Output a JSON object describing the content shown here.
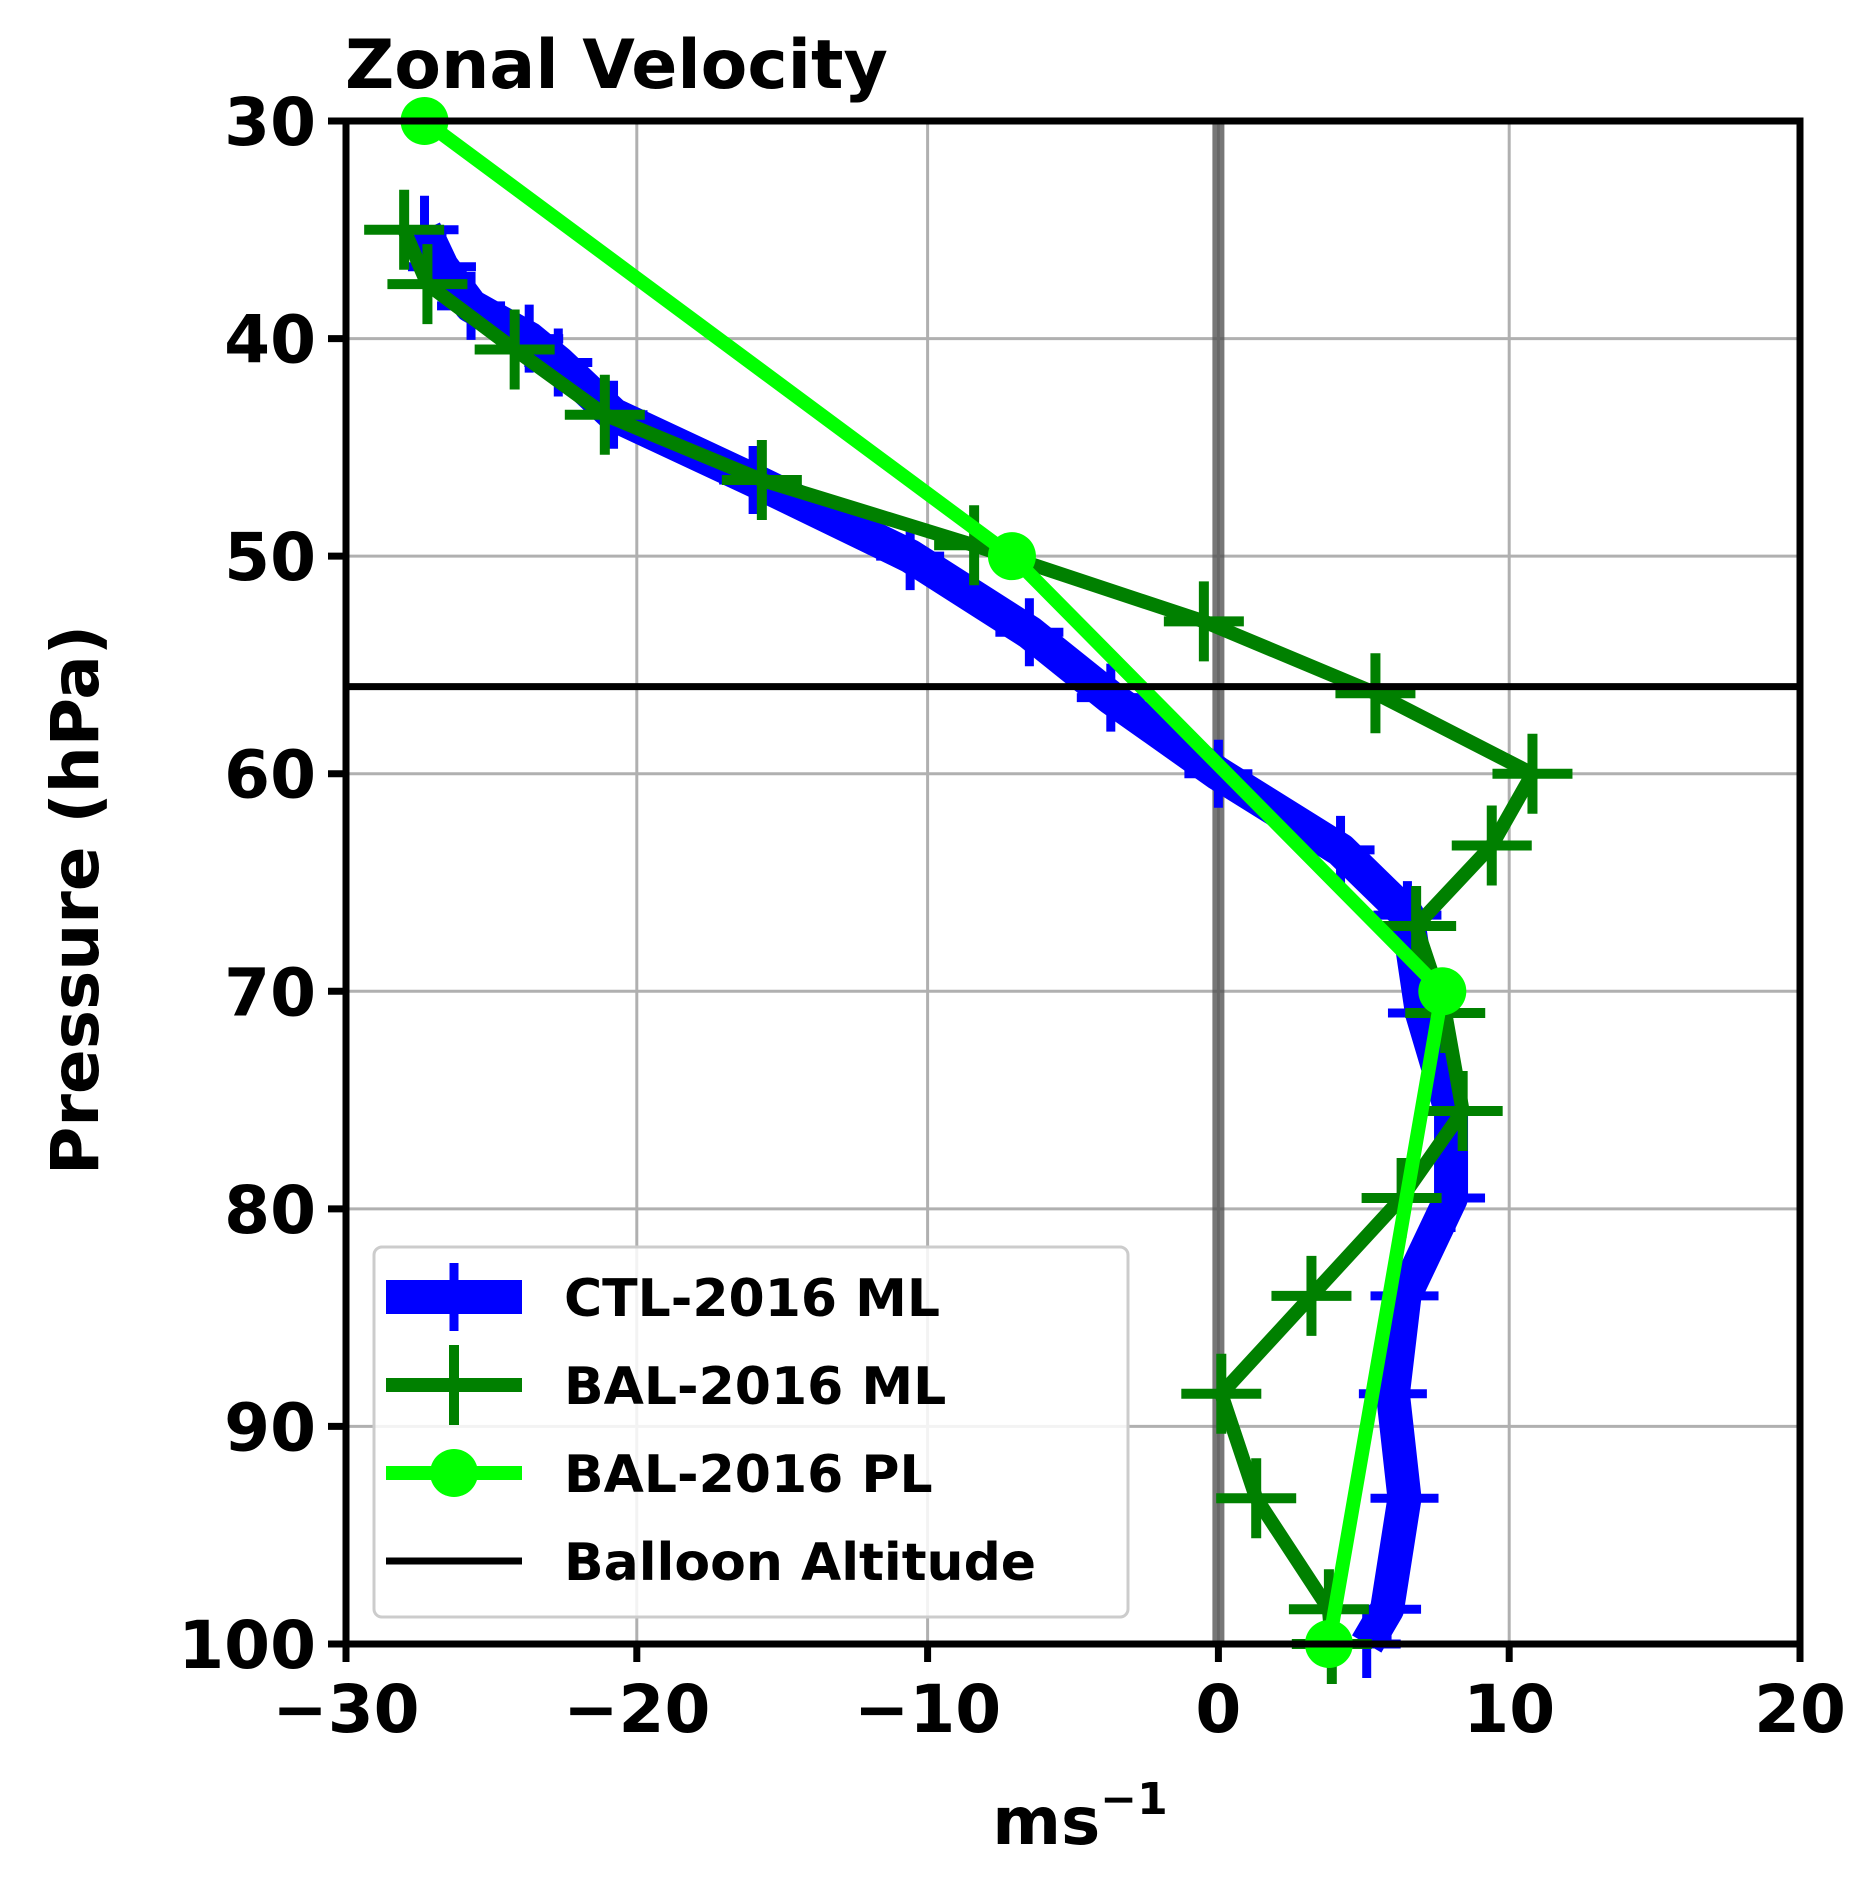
{
  "chart_data": {
    "type": "line",
    "title": "Zonal Velocity",
    "xlabel": "ms",
    "xlabel_superscript": "−1",
    "ylabel": "Pressure (hPa)",
    "xlim": [
      -30,
      20
    ],
    "ylim": [
      30,
      100
    ],
    "y_inverted": true,
    "grid": true,
    "legend_position": "lower-left",
    "xticks": [
      -30,
      -20,
      -10,
      0,
      10,
      20
    ],
    "xtick_labels": [
      "−30",
      "−20",
      "−10",
      "0",
      "10",
      "20"
    ],
    "yticks": [
      30,
      40,
      50,
      60,
      70,
      80,
      90,
      100
    ],
    "ytick_labels": [
      "30",
      "40",
      "50",
      "60",
      "70",
      "80",
      "90",
      "100"
    ],
    "zero_line_x": 0,
    "balloon_altitude": 56,
    "series": [
      {
        "name": "CTL-2016 ML",
        "color": "#0000ff",
        "marker": "plus",
        "linewidth": 34,
        "points": [
          [
            -27.3,
            35
          ],
          [
            -26.7,
            36.7
          ],
          [
            -25.7,
            38.5
          ],
          [
            -23.7,
            40
          ],
          [
            -22.7,
            41.1
          ],
          [
            -20.8,
            43.5
          ],
          [
            -16,
            46.5
          ],
          [
            -10.6,
            50
          ],
          [
            -6.5,
            53.5
          ],
          [
            -3.7,
            56.5
          ],
          [
            0,
            60
          ],
          [
            4.2,
            63.5
          ],
          [
            6.5,
            66.5
          ],
          [
            7.0,
            71
          ],
          [
            8.0,
            75.5
          ],
          [
            8.0,
            79.5
          ],
          [
            6.4,
            84
          ],
          [
            6.0,
            88.5
          ],
          [
            6.4,
            93.3
          ],
          [
            5.8,
            98.4
          ],
          [
            5.1,
            100
          ]
        ]
      },
      {
        "name": "BAL-2016 ML",
        "color": "#008000",
        "marker": "plus",
        "linewidth": 14,
        "points": [
          [
            -28.0,
            35
          ],
          [
            -27.2,
            37.5
          ],
          [
            -24.2,
            40.5
          ],
          [
            -21.1,
            43.5
          ],
          [
            -15.7,
            46.5
          ],
          [
            -8.4,
            49.5
          ],
          [
            -0.5,
            53
          ],
          [
            5.4,
            56.3
          ],
          [
            10.8,
            60
          ],
          [
            9.4,
            63.3
          ],
          [
            6.8,
            67
          ],
          [
            7.8,
            71
          ],
          [
            8.4,
            75.5
          ],
          [
            6.3,
            79.5
          ],
          [
            3.2,
            84
          ],
          [
            0.1,
            88.5
          ],
          [
            1.3,
            93.3
          ],
          [
            3.8,
            98.4
          ],
          [
            3.9,
            100
          ]
        ]
      },
      {
        "name": "BAL-2016 PL",
        "color": "#00ff00",
        "marker": "circle",
        "linewidth": 14,
        "points": [
          [
            -27.3,
            30
          ],
          [
            -7.1,
            50
          ],
          [
            7.7,
            70
          ],
          [
            3.8,
            100
          ]
        ]
      }
    ],
    "legend": [
      {
        "label": "CTL-2016 ML",
        "color": "#0000ff",
        "style": "thick-plus"
      },
      {
        "label": "BAL-2016 ML",
        "color": "#008000",
        "style": "plus"
      },
      {
        "label": "BAL-2016 PL",
        "color": "#00ff00",
        "style": "circle"
      },
      {
        "label": "Balloon Altitude",
        "color": "#000000",
        "style": "line"
      }
    ]
  }
}
